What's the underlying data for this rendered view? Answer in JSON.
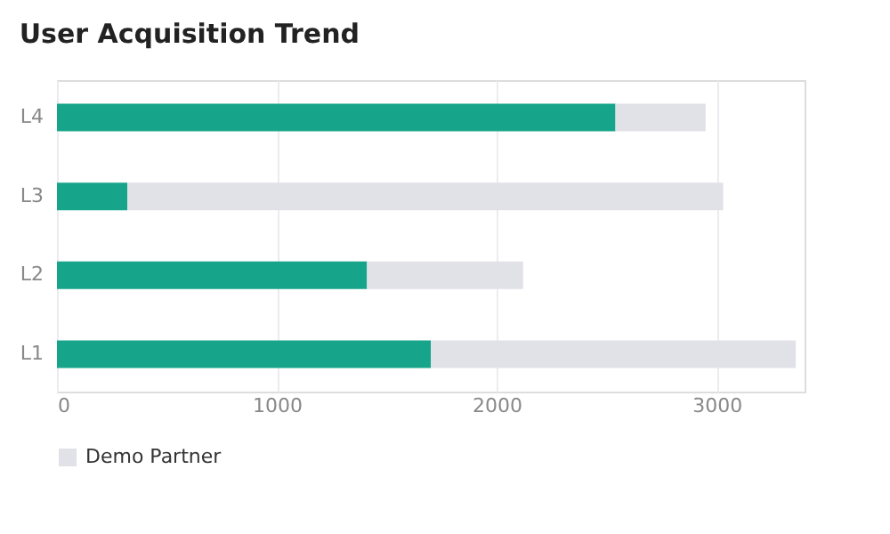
{
  "chart_data": {
    "type": "bar",
    "orientation": "horizontal",
    "stacked": true,
    "title": "User Acquisition Trend",
    "categories": [
      "L4",
      "L3",
      "L2",
      "L1"
    ],
    "series": [
      {
        "color": "#16a58a",
        "values": [
          2540,
          320,
          1410,
          1700
        ]
      },
      {
        "name": "Demo Partner",
        "color": "#e1e1e8",
        "values": [
          410,
          2710,
          710,
          1660
        ]
      }
    ],
    "xlim": [
      0,
      3400
    ],
    "xticks": [
      0,
      1000,
      2000,
      3000
    ],
    "grid": "x",
    "legend": "bottom"
  }
}
